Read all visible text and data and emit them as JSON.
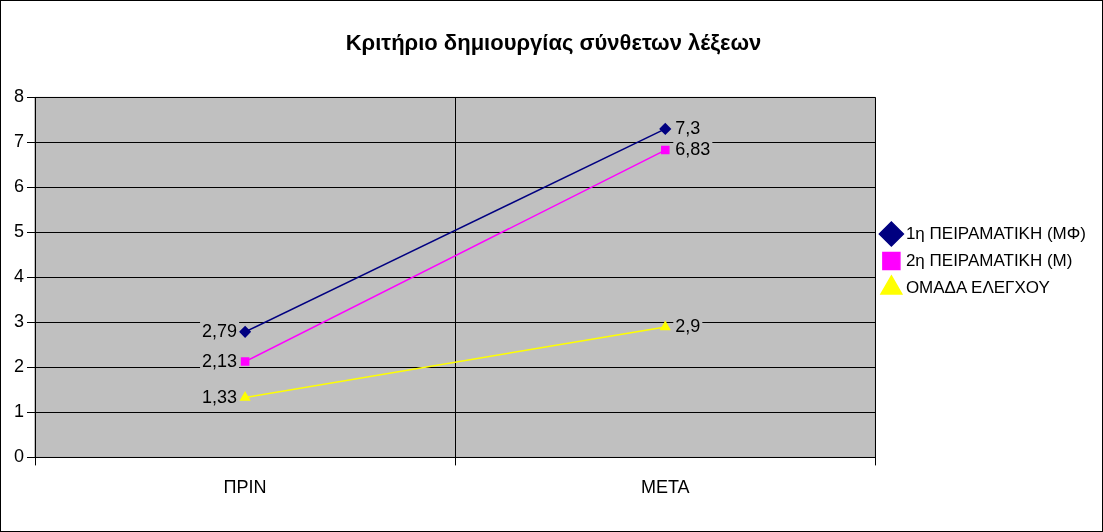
{
  "chart_data": {
    "type": "line",
    "title": "Κριτήριο δημιουργίας σύνθετων λέξεων",
    "categories": [
      "ΠΡΙΝ",
      "ΜΕΤΑ"
    ],
    "series": [
      {
        "name": "1η ΠΕΙΡΑΜΑΤΙΚΗ (ΜΦ)",
        "color": "#000080",
        "marker": "diamond",
        "values": [
          2.79,
          7.3
        ],
        "value_labels": [
          "2,79",
          "7,3"
        ]
      },
      {
        "name": "2η ΠΕΙΡΑΜΑΤΙΚΗ (Μ)",
        "color": "#ff00ff",
        "marker": "square",
        "values": [
          2.13,
          6.83
        ],
        "value_labels": [
          "2,13",
          "6,83"
        ]
      },
      {
        "name": "ΟΜΑΔΑ ΕΛΕΓΧΟΥ",
        "color": "#ffff00",
        "marker": "triangle",
        "values": [
          1.33,
          2.9
        ],
        "value_labels": [
          "1,33",
          "2,9"
        ]
      }
    ],
    "ylim": [
      0,
      8
    ],
    "yticks": [
      0,
      1,
      2,
      3,
      4,
      5,
      6,
      7,
      8
    ],
    "grid": true,
    "legend": "right"
  }
}
